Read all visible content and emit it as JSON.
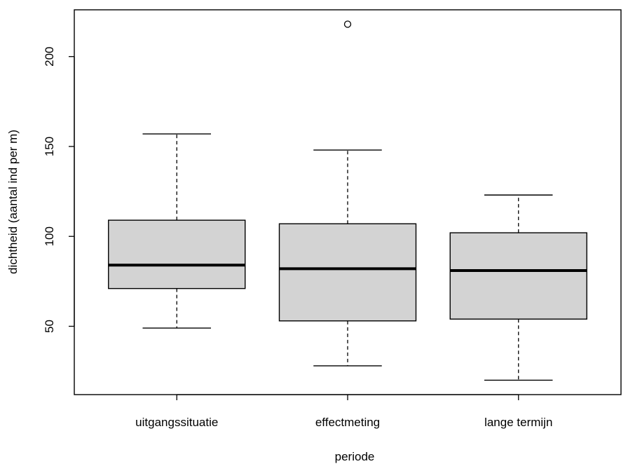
{
  "chart_data": {
    "type": "boxplot",
    "title": "",
    "xlabel": "periode",
    "ylabel": "dichtheid (aantal ind per m)",
    "categories": [
      "uitgangssituatie",
      "effectmeting",
      "lange termijn"
    ],
    "boxes": [
      {
        "category": "uitgangssituatie",
        "whisker_low": 49,
        "q1": 71,
        "median": 84,
        "q3": 109,
        "whisker_high": 157,
        "outliers": []
      },
      {
        "category": "effectmeting",
        "whisker_low": 28,
        "q1": 53,
        "median": 82,
        "q3": 107,
        "whisker_high": 148,
        "outliers": [
          218
        ]
      },
      {
        "category": "lange termijn",
        "whisker_low": 20,
        "q1": 54,
        "median": 81,
        "q3": 102,
        "whisker_high": 123,
        "outliers": []
      }
    ],
    "yticks": [
      50,
      100,
      150,
      200
    ],
    "ylim": [
      12,
      226
    ],
    "box_fill": "#d3d3d3",
    "line_color": "#000000",
    "grid": false,
    "legend": "none"
  }
}
